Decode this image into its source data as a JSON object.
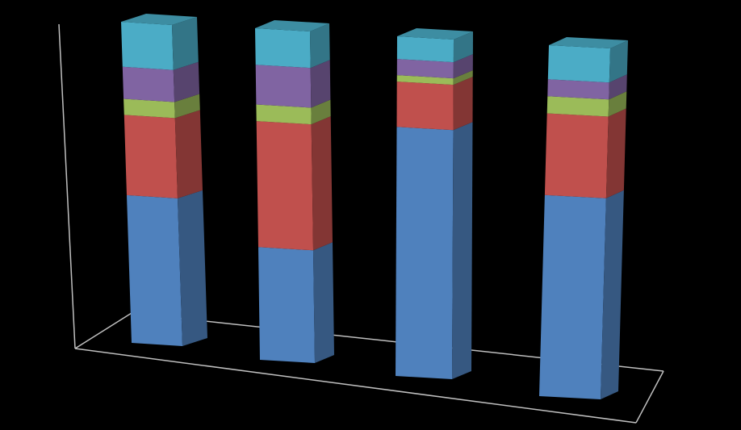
{
  "chart_data": {
    "type": "bar",
    "stacked": true,
    "normalized": true,
    "three_d": true,
    "title": "",
    "xlabel": "",
    "ylabel": "",
    "categories": [
      "",
      "",
      "",
      ""
    ],
    "ylim": [
      0,
      100
    ],
    "grid": false,
    "legend": "none",
    "series": [
      {
        "color": "#4F81BD",
        "values": [
          46,
          34,
          77,
          59
        ]
      },
      {
        "color": "#C0504D",
        "values": [
          25,
          38,
          14,
          24
        ]
      },
      {
        "color": "#9BBB59",
        "values": [
          5,
          5,
          2,
          5
        ]
      },
      {
        "color": "#8064A2",
        "values": [
          10,
          12,
          5,
          5
        ]
      },
      {
        "color": "#4BACC6",
        "values": [
          14,
          11,
          7,
          10
        ]
      }
    ]
  },
  "colors": {
    "background": "#000000",
    "axis": "#BFBFBF"
  }
}
